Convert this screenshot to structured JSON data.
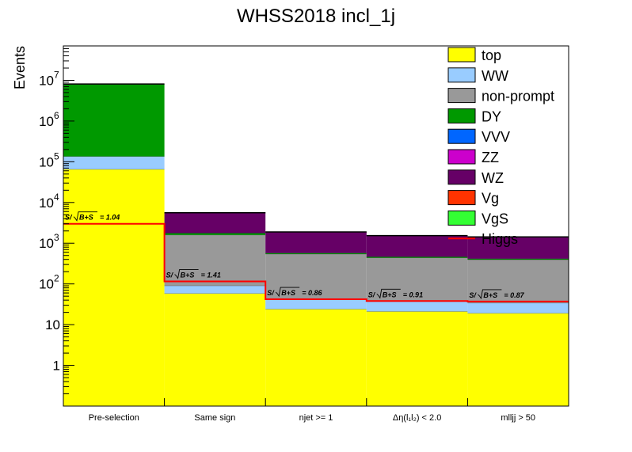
{
  "chart_data": {
    "type": "bar",
    "stacked": true,
    "title": "WHSS2018 incl_1j",
    "ylabel": "Events",
    "xlabel": "",
    "yscale": "log",
    "ylim": [
      0.1,
      70000000
    ],
    "grid": false,
    "legend_position": "top-right",
    "categories": [
      "Pre-selection",
      "Same sign",
      "njet >= 1",
      "Δη(l₁l₂) < 2.0",
      "mlljj > 50"
    ],
    "yticks": [
      {
        "value": 1,
        "base": "1",
        "exp": ""
      },
      {
        "value": 10,
        "base": "10",
        "exp": ""
      },
      {
        "value": 100,
        "base": "10",
        "exp": "2"
      },
      {
        "value": 1000,
        "base": "10",
        "exp": "3"
      },
      {
        "value": 10000,
        "base": "10",
        "exp": "4"
      },
      {
        "value": 100000,
        "base": "10",
        "exp": "5"
      },
      {
        "value": 1000000,
        "base": "10",
        "exp": "6"
      },
      {
        "value": 10000000,
        "base": "10",
        "exp": "7"
      }
    ],
    "series": [
      {
        "name": "top",
        "color": "#ffff00",
        "values": [
          65000,
          58,
          24,
          21,
          19
        ]
      },
      {
        "name": "WW",
        "color": "#99ccff",
        "values": [
          70000,
          32,
          17,
          16,
          15
        ]
      },
      {
        "name": "non-prompt",
        "color": "#999999",
        "values": [
          0,
          1500,
          500,
          400,
          360
        ]
      },
      {
        "name": "DY",
        "color": "#009900",
        "values": [
          8000000,
          170,
          30,
          25,
          20
        ]
      },
      {
        "name": "VVV",
        "color": "#0066ff",
        "values": [
          0,
          5,
          3,
          3,
          2
        ]
      },
      {
        "name": "ZZ",
        "color": "#cc00cc",
        "values": [
          0,
          20,
          10,
          9,
          8
        ]
      },
      {
        "name": "WZ",
        "color": "#660066",
        "values": [
          0,
          3800,
          1300,
          1050,
          1000
        ]
      },
      {
        "name": "Vg",
        "color": "#ff3300",
        "values": [
          0,
          10,
          4,
          3,
          3
        ]
      },
      {
        "name": "VgS",
        "color": "#33ff33",
        "values": [
          0,
          15,
          8,
          7,
          6
        ]
      }
    ],
    "signal": {
      "name": "Higgs",
      "color": "#ff0000",
      "values": [
        3000,
        115,
        42,
        38,
        37
      ]
    },
    "annotations": [
      {
        "category": 0,
        "prefix": "S/",
        "radicand": "B+S",
        "value": "= 1.04"
      },
      {
        "category": 1,
        "prefix": "S/",
        "radicand": "B+S",
        "value": "= 1.41"
      },
      {
        "category": 2,
        "prefix": "S/",
        "radicand": "B+S",
        "value": "= 0.86"
      },
      {
        "category": 3,
        "prefix": "S/",
        "radicand": "B+S",
        "value": "= 0.91"
      },
      {
        "category": 4,
        "prefix": "S/",
        "radicand": "B+S",
        "value": "= 0.87"
      }
    ]
  }
}
